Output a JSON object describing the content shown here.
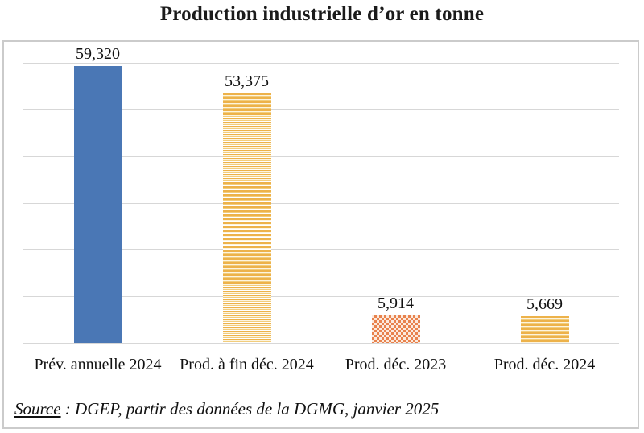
{
  "title": "Production industrielle d’or en tonne",
  "source": {
    "label": "Source",
    "rest": " : DGEP,  partir des données de la DGMG, janvier 2025"
  },
  "chart_data": {
    "type": "bar",
    "title": "Production industrielle d’or en tonne",
    "categories": [
      "Prév. annuelle 2024",
      "Prod. à fin déc. 2024",
      "Prod. déc. 2023",
      "Prod. déc. 2024"
    ],
    "values": [
      59.32,
      53.375,
      5.914,
      5.669
    ],
    "value_labels": [
      "59,320",
      "53,375",
      "5,914",
      "5,669"
    ],
    "unit": "tonne",
    "bar_styles": [
      "solid-blue",
      "stripes-gold",
      "checker-orange",
      "stripes-gold"
    ],
    "ylim": [
      0,
      60
    ],
    "gridline_interval": 10,
    "grid": true,
    "legend": false,
    "y_axis_labels_visible": false,
    "colors": {
      "blue": "#4a77b5",
      "gold": "#edb24a",
      "orange": "#e8824d",
      "gridline": "#d7d7d7",
      "box_border": "#cbcbcb",
      "text": "#111111"
    }
  }
}
